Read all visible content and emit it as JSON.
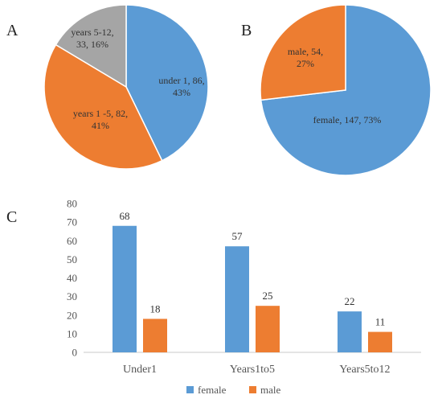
{
  "panels": {
    "a": "A",
    "b": "B",
    "c": "C"
  },
  "colors": {
    "blue": "#5b9bd5",
    "orange": "#ed7d31",
    "gray": "#a5a5a5"
  },
  "chart_data": [
    {
      "type": "pie",
      "panel": "A",
      "slices": [
        {
          "label_lines": [
            "under 1, 86,",
            "43%"
          ],
          "name": "under 1",
          "value": 86,
          "percent": 43,
          "color": "#5b9bd5"
        },
        {
          "label_lines": [
            "years 1 -5, 82,",
            "41%"
          ],
          "name": "years 1 -5",
          "value": 82,
          "percent": 41,
          "color": "#ed7d31"
        },
        {
          "label_lines": [
            "years 5-12,",
            "33, 16%"
          ],
          "name": "years 5-12",
          "value": 33,
          "percent": 16,
          "color": "#a5a5a5"
        }
      ]
    },
    {
      "type": "pie",
      "panel": "B",
      "slices": [
        {
          "label_lines": [
            "female, 147, 73%"
          ],
          "name": "female",
          "value": 147,
          "percent": 73,
          "color": "#5b9bd5"
        },
        {
          "label_lines": [
            "male, 54,",
            "27%"
          ],
          "name": "male",
          "value": 54,
          "percent": 27,
          "color": "#ed7d31"
        }
      ]
    },
    {
      "type": "bar",
      "panel": "C",
      "categories": [
        "Under1",
        "Years1to5",
        "Years5to12"
      ],
      "series": [
        {
          "name": "female",
          "values": [
            68,
            57,
            22
          ],
          "color": "#5b9bd5"
        },
        {
          "name": "male",
          "values": [
            18,
            25,
            11
          ],
          "color": "#ed7d31"
        }
      ],
      "ylim": [
        0,
        80
      ],
      "yticks": [
        0,
        10,
        20,
        30,
        40,
        50,
        60,
        70,
        80
      ],
      "grid": false,
      "legend": "bottom"
    }
  ]
}
